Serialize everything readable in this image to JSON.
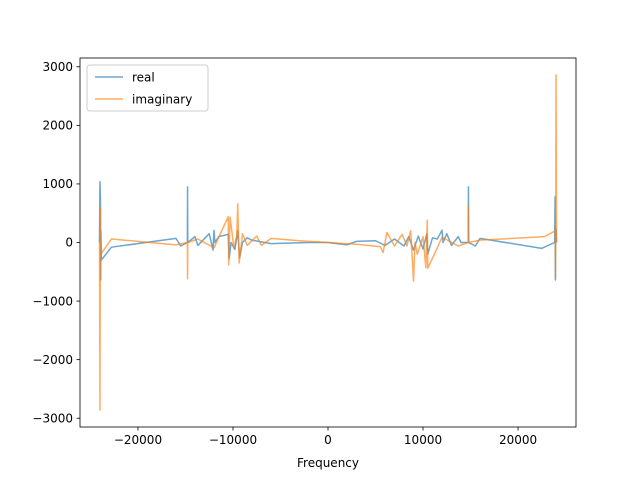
{
  "chart_data": {
    "type": "line",
    "title": "",
    "xlabel": "Frequency",
    "ylabel": "",
    "xlim": [
      -26100,
      26100
    ],
    "ylim": [
      -3150,
      3150
    ],
    "xticks": [
      -20000,
      -10000,
      0,
      10000,
      20000
    ],
    "xtick_labels": [
      "−20000",
      "−10000",
      "0",
      "10000",
      "20000"
    ],
    "yticks": [
      -3000,
      -2000,
      -1000,
      0,
      1000,
      2000,
      3000
    ],
    "ytick_labels": [
      "−3000",
      "−2000",
      "−1000",
      "0",
      "1000",
      "2000",
      "3000"
    ],
    "grid": false,
    "legend_position": "upper-left",
    "series": [
      {
        "name": "real",
        "color": "#1f77b4",
        "x": [
          -24050,
          -24000,
          -23950,
          -23930,
          -23900,
          -23850,
          -22800,
          -16000,
          -15500,
          -14800,
          -14780,
          -14760,
          -14000,
          -13700,
          -12500,
          -12100,
          -12000,
          -11900,
          -11500,
          -10500,
          -10400,
          -10200,
          -9800,
          -9500,
          -9300,
          -9000,
          -8500,
          -8000,
          -6000,
          -2000,
          0,
          2000,
          3000,
          5000,
          6000,
          7000,
          8000,
          8500,
          9000,
          9500,
          10000,
          10400,
          10500,
          11000,
          11500,
          12000,
          12100,
          12500,
          13000,
          13700,
          14000,
          14760,
          14780,
          14800,
          15500,
          16000,
          22500,
          23850,
          23900,
          23930,
          23950,
          24000,
          24050
        ],
        "y": [
          0,
          1040,
          780,
          -640,
          200,
          -300,
          -80,
          70,
          -60,
          0,
          950,
          0,
          100,
          -50,
          150,
          -130,
          210,
          0,
          100,
          140,
          -270,
          0,
          -120,
          200,
          -260,
          0,
          80,
          40,
          -20,
          0,
          0,
          -40,
          20,
          30,
          -50,
          60,
          -60,
          100,
          -130,
          110,
          -110,
          150,
          -200,
          80,
          60,
          210,
          0,
          150,
          -50,
          100,
          0,
          0,
          950,
          0,
          -60,
          70,
          -100,
          0,
          780,
          -640,
          200,
          240,
          0
        ]
      },
      {
        "name": "imaginary",
        "color": "#ff7f0e",
        "x": [
          -24050,
          -24000,
          -23950,
          -23930,
          -23900,
          -22800,
          -16000,
          -14800,
          -14780,
          -14760,
          -13700,
          -12000,
          -11500,
          -10500,
          -10450,
          -10300,
          -9900,
          -9600,
          -9500,
          -9350,
          -9000,
          -8500,
          -7500,
          -7000,
          -6000,
          -3000,
          0,
          3000,
          5500,
          5800,
          6200,
          7000,
          7800,
          8300,
          8700,
          9000,
          9150,
          9400,
          10000,
          10300,
          10450,
          10500,
          11500,
          12000,
          13700,
          14760,
          14780,
          14800,
          16000,
          22800,
          23900,
          23930,
          23950,
          24000,
          24050
        ],
        "y": [
          0,
          -2860,
          600,
          0,
          -200,
          60,
          -40,
          0,
          -620,
          0,
          60,
          -90,
          90,
          440,
          -380,
          430,
          -100,
          120,
          660,
          -350,
          150,
          -50,
          110,
          -50,
          70,
          30,
          0,
          -30,
          -70,
          -170,
          170,
          -60,
          140,
          -60,
          200,
          -660,
          0,
          -200,
          100,
          -430,
          380,
          -440,
          -90,
          90,
          -60,
          0,
          620,
          0,
          40,
          100,
          200,
          0,
          -600,
          2860,
          0
        ]
      }
    ]
  }
}
